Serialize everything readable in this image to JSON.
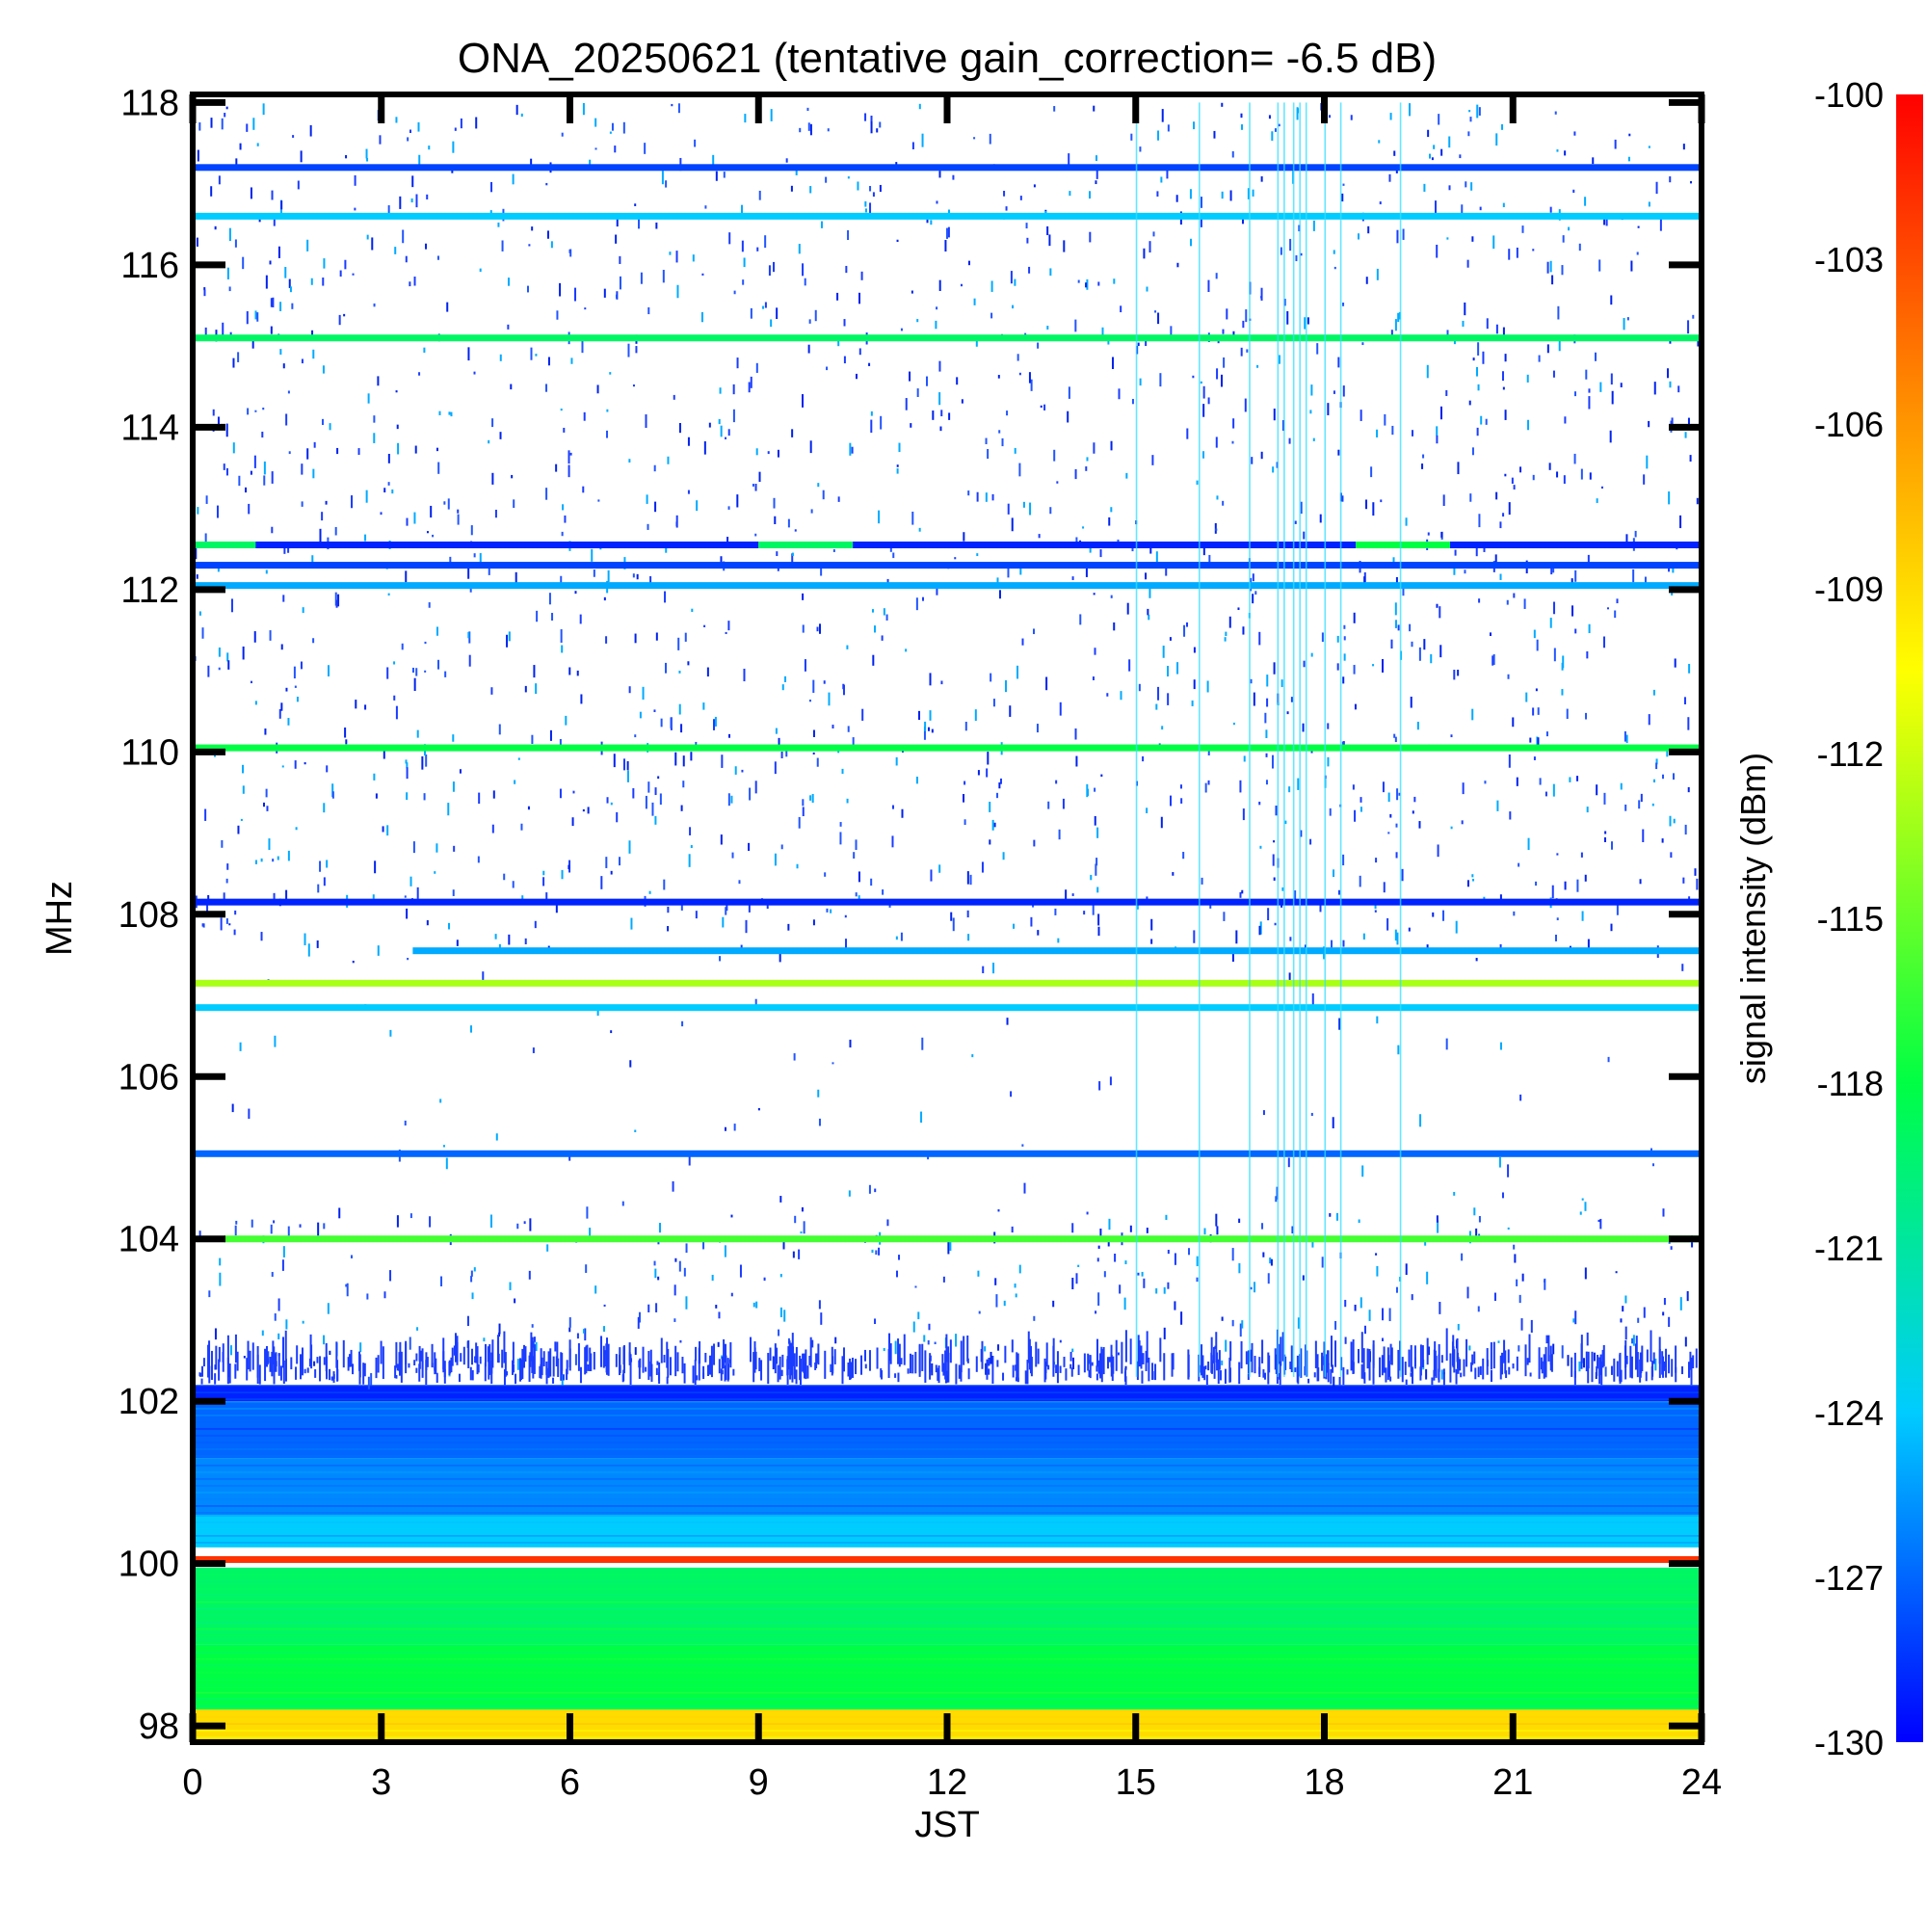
{
  "chart_data": {
    "type": "heatmap",
    "title": "ONA_20250621 (tentative gain_correction= -6.5 dB)",
    "xlabel": "JST",
    "ylabel": "MHz",
    "xlim": [
      0,
      24
    ],
    "ylim": [
      97.8,
      118.1
    ],
    "x_ticks": [
      0,
      3,
      6,
      9,
      12,
      15,
      18,
      21,
      24
    ],
    "y_ticks": [
      98,
      100,
      102,
      104,
      106,
      108,
      110,
      112,
      114,
      116,
      118
    ],
    "colorbar": {
      "label": "signal intensity (dBm)",
      "range": [
        -130,
        -100
      ],
      "ticks": [
        -100,
        -103,
        -106,
        -109,
        -112,
        -115,
        -118,
        -121,
        -124,
        -127,
        -130
      ],
      "colormap": [
        "#0000ff",
        "#00ccff",
        "#00ff44",
        "#ffff00",
        "#ff8800",
        "#ff0000"
      ]
    },
    "bands": [
      {
        "freq_mhz": 117.2,
        "dbm": -128,
        "t_start": 0,
        "t_end": 24
      },
      {
        "freq_mhz": 116.6,
        "dbm": -124,
        "t_start": 0,
        "t_end": 24
      },
      {
        "freq_mhz": 115.1,
        "dbm": -119,
        "t_start": 0,
        "t_end": 24
      },
      {
        "freq_mhz": 112.55,
        "dbm": -119,
        "t_start": 0,
        "t_end": 1
      },
      {
        "freq_mhz": 112.55,
        "dbm": -129,
        "t_start": 1,
        "t_end": 9
      },
      {
        "freq_mhz": 112.55,
        "dbm": -119,
        "t_start": 9,
        "t_end": 10.5
      },
      {
        "freq_mhz": 112.55,
        "dbm": -129,
        "t_start": 10.5,
        "t_end": 18.5
      },
      {
        "freq_mhz": 112.55,
        "dbm": -118,
        "t_start": 18.5,
        "t_end": 20
      },
      {
        "freq_mhz": 112.55,
        "dbm": -129,
        "t_start": 20,
        "t_end": 24
      },
      {
        "freq_mhz": 112.3,
        "dbm": -128,
        "t_start": 0,
        "t_end": 24
      },
      {
        "freq_mhz": 112.05,
        "dbm": -125,
        "t_start": 0,
        "t_end": 24
      },
      {
        "freq_mhz": 110.05,
        "dbm": -118,
        "t_start": 0,
        "t_end": 24
      },
      {
        "freq_mhz": 108.15,
        "dbm": -129,
        "t_start": 0,
        "t_end": 24
      },
      {
        "freq_mhz": 107.55,
        "dbm": -125,
        "t_start": 3.5,
        "t_end": 24
      },
      {
        "freq_mhz": 107.15,
        "dbm": -113,
        "t_start": 0,
        "t_end": 24
      },
      {
        "freq_mhz": 106.85,
        "dbm": -124,
        "t_start": 0,
        "t_end": 24
      },
      {
        "freq_mhz": 105.05,
        "dbm": -127,
        "t_start": 0,
        "t_end": 24
      },
      {
        "freq_mhz": 104.0,
        "dbm": -116,
        "t_start": 0.5,
        "t_end": 24
      },
      {
        "freq_mhz": 100.05,
        "dbm": -102,
        "t_start": 0,
        "t_end": 24
      }
    ],
    "regions": [
      {
        "f_start": 102.0,
        "f_end": 102.2,
        "dbm": -129
      },
      {
        "f_start": 101.3,
        "f_end": 102.0,
        "dbm": -127
      },
      {
        "f_start": 100.6,
        "f_end": 101.3,
        "dbm": -126
      },
      {
        "f_start": 100.2,
        "f_end": 100.6,
        "dbm": -124
      },
      {
        "f_start": 99.0,
        "f_end": 99.95,
        "dbm": -119
      },
      {
        "f_start": 98.2,
        "f_end": 99.0,
        "dbm": -118
      },
      {
        "f_start": 97.8,
        "f_end": 98.2,
        "dbm": -109
      }
    ]
  }
}
